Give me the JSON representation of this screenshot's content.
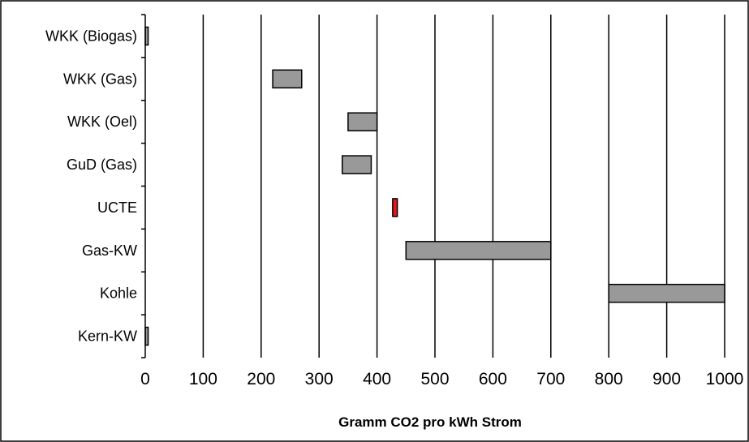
{
  "chart_data": {
    "type": "bar",
    "orientation": "horizontal",
    "bar_style": "floating-range",
    "title": "",
    "xlabel": "Gramm CO2 pro kWh Strom",
    "ylabel": "",
    "xlim": [
      0,
      1000
    ],
    "x_ticks": [
      0,
      100,
      200,
      300,
      400,
      500,
      600,
      700,
      800,
      900,
      1000
    ],
    "x_tick_labels": [
      "0",
      "100",
      "200",
      "300",
      "400",
      "500",
      "600",
      "700",
      "800",
      "900",
      "1000"
    ],
    "grid": "vertical-major",
    "legend": "none",
    "categories": [
      "WKK (Biogas)",
      "WKK (Gas)",
      "WKK (Oel)",
      "GuD (Gas)",
      "UCTE",
      "Gas-KW",
      "Kohle",
      "Kern-KW"
    ],
    "ranges": [
      {
        "label": "WKK (Biogas)",
        "min": 0,
        "max": 5,
        "color": "#999999"
      },
      {
        "label": "WKK (Gas)",
        "min": 220,
        "max": 270,
        "color": "#999999"
      },
      {
        "label": "WKK (Oel)",
        "min": 350,
        "max": 400,
        "color": "#999999"
      },
      {
        "label": "GuD (Gas)",
        "min": 340,
        "max": 390,
        "color": "#999999"
      },
      {
        "label": "UCTE",
        "min": 427,
        "max": 435,
        "color": "#e8191c"
      },
      {
        "label": "Gas-KW",
        "min": 450,
        "max": 700,
        "color": "#999999"
      },
      {
        "label": "Kohle",
        "min": 800,
        "max": 1000,
        "color": "#999999"
      },
      {
        "label": "Kern-KW",
        "min": 0,
        "max": 5,
        "color": "#999999"
      }
    ]
  }
}
